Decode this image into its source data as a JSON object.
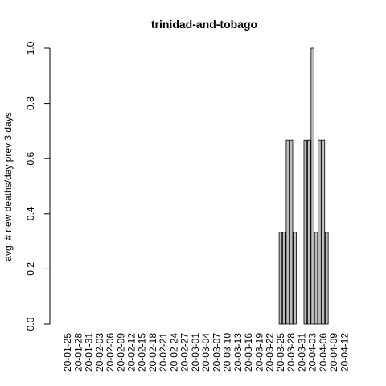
{
  "chart_data": {
    "type": "bar",
    "title": "trinidad-and-tobago",
    "xlabel": "",
    "ylabel": "avg. # new deaths/day prev  3  days",
    "ylim": [
      0,
      1
    ],
    "yticks": [
      "0.0",
      "0.2",
      "0.4",
      "0.6",
      "0.8",
      "1.0"
    ],
    "categories": [
      "20-01-23",
      "20-01-24",
      "20-01-25",
      "20-01-26",
      "20-01-27",
      "20-01-28",
      "20-01-29",
      "20-01-30",
      "20-01-31",
      "20-02-01",
      "20-02-02",
      "20-02-03",
      "20-02-04",
      "20-02-05",
      "20-02-06",
      "20-02-07",
      "20-02-08",
      "20-02-09",
      "20-02-10",
      "20-02-11",
      "20-02-12",
      "20-02-13",
      "20-02-14",
      "20-02-15",
      "20-02-16",
      "20-02-17",
      "20-02-18",
      "20-02-19",
      "20-02-20",
      "20-02-21",
      "20-02-22",
      "20-02-23",
      "20-02-24",
      "20-02-25",
      "20-02-26",
      "20-02-27",
      "20-02-28",
      "20-02-29",
      "20-03-01",
      "20-03-02",
      "20-03-03",
      "20-03-04",
      "20-03-05",
      "20-03-06",
      "20-03-07",
      "20-03-08",
      "20-03-09",
      "20-03-10",
      "20-03-11",
      "20-03-12",
      "20-03-13",
      "20-03-14",
      "20-03-15",
      "20-03-16",
      "20-03-17",
      "20-03-18",
      "20-03-19",
      "20-03-20",
      "20-03-21",
      "20-03-22",
      "20-03-23",
      "20-03-24",
      "20-03-25",
      "20-03-26",
      "20-03-27",
      "20-03-28",
      "20-03-29",
      "20-03-30",
      "20-03-31",
      "20-04-01",
      "20-04-02",
      "20-04-03",
      "20-04-04",
      "20-04-05",
      "20-04-06",
      "20-04-07",
      "20-04-08",
      "20-04-09",
      "20-04-10",
      "20-04-11",
      "20-04-12",
      "20-04-13"
    ],
    "x_tick_labels": [
      "20-01-25",
      "20-01-28",
      "20-01-31",
      "20-02-03",
      "20-02-06",
      "20-02-09",
      "20-02-12",
      "20-02-15",
      "20-02-18",
      "20-02-21",
      "20-02-24",
      "20-02-27",
      "20-03-01",
      "20-03-04",
      "20-03-07",
      "20-03-10",
      "20-03-13",
      "20-03-16",
      "20-03-19",
      "20-03-22",
      "20-03-25",
      "20-03-28",
      "20-03-31",
      "20-04-03",
      "20-04-06",
      "20-04-09",
      "20-04-12"
    ],
    "values": [
      0,
      0,
      0,
      0,
      0,
      0,
      0,
      0,
      0,
      0,
      0,
      0,
      0,
      0,
      0,
      0,
      0,
      0,
      0,
      0,
      0,
      0,
      0,
      0,
      0,
      0,
      0,
      0,
      0,
      0,
      0,
      0,
      0,
      0,
      0,
      0,
      0,
      0,
      0,
      0,
      0,
      0,
      0,
      0,
      0,
      0,
      0,
      0,
      0,
      0,
      0,
      0,
      0,
      0,
      0,
      0,
      0,
      0,
      0,
      0,
      0,
      0,
      0.333,
      0.333,
      0.667,
      0.667,
      0.333,
      0,
      0,
      0.667,
      0.667,
      1,
      0.333,
      0.667,
      0.667,
      0.333,
      0,
      0,
      0,
      0,
      0,
      0
    ],
    "grid": false,
    "legend": "none"
  }
}
